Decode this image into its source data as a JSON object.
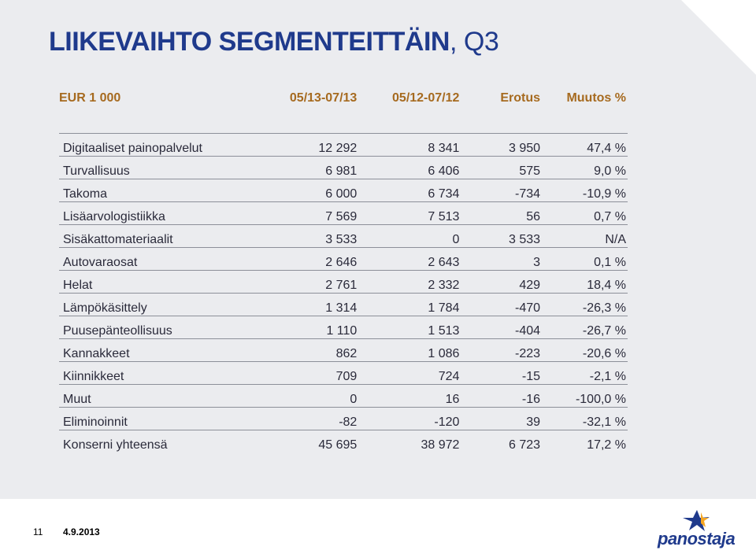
{
  "title": {
    "bold": "LIIKEVAIHTO SEGMENTEITTÄIN",
    "light": ", Q3"
  },
  "table": {
    "headers": [
      "EUR 1 000",
      "05/13-07/13",
      "05/12-07/12",
      "Erotus",
      "Muutos %"
    ],
    "rows": [
      [
        "Digitaaliset painopalvelut",
        "12 292",
        "8 341",
        "3 950",
        "47,4 %"
      ],
      [
        "Turvallisuus",
        "6 981",
        "6 406",
        "575",
        "9,0 %"
      ],
      [
        "Takoma",
        "6 000",
        "6 734",
        "-734",
        "-10,9 %"
      ],
      [
        "Lisäarvologistiikka",
        "7 569",
        "7 513",
        "56",
        "0,7 %"
      ],
      [
        "Sisäkattomateriaalit",
        "3 533",
        "0",
        "3 533",
        "N/A"
      ],
      [
        "Autovaraosat",
        "2 646",
        "2 643",
        "3",
        "0,1 %"
      ],
      [
        "Helat",
        "2 761",
        "2 332",
        "429",
        "18,4 %"
      ],
      [
        "Lämpökäsittely",
        "1 314",
        "1 784",
        "-470",
        "-26,3 %"
      ],
      [
        "Puusepänteollisuus",
        "1 110",
        "1 513",
        "-404",
        "-26,7 %"
      ],
      [
        "Kannakkeet",
        "862",
        "1 086",
        "-223",
        "-20,6 %"
      ],
      [
        "Kiinnikkeet",
        "709",
        "724",
        "-15",
        "-2,1 %"
      ],
      [
        "Muut",
        "0",
        "16",
        "-16",
        "-100,0 %"
      ],
      [
        "Eliminoinnit",
        "-82",
        "-120",
        "39",
        "-32,1 %"
      ],
      [
        "Konserni yhteensä",
        "45 695",
        "38 972",
        "6 723",
        "17,2 %"
      ]
    ]
  },
  "footer": {
    "page": "11",
    "date": "4.9.2013"
  },
  "logo": {
    "text": "panostaja",
    "icon": "star-icon"
  },
  "colors": {
    "title": "#1f3a8c",
    "header": "#a66a1f",
    "background": "#ebecef",
    "logo_star": "#f5a623"
  }
}
